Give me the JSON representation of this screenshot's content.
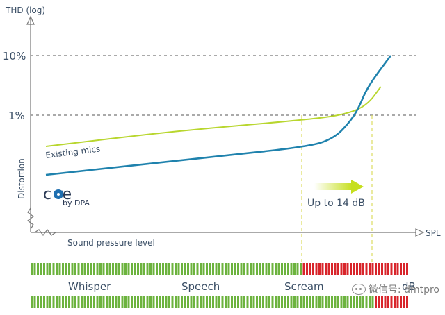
{
  "chart_data": {
    "type": "line",
    "ylabel": "THD (log)",
    "ylabel_side": "Distortion",
    "xlabel": "SPL",
    "xlabel_sub": "Sound pressure level",
    "y_scale": "log",
    "y_ticks": [
      {
        "label": "10%",
        "value": 10
      },
      {
        "label": "1%",
        "value": 1
      }
    ],
    "grid": "dashed lines at 1% and 10%",
    "series": [
      {
        "name": "Existing mics",
        "color": "#b8d62e",
        "points": [
          [
            0.0,
            0.3
          ],
          [
            0.4,
            0.55
          ],
          [
            0.8,
            0.85
          ],
          [
            0.91,
            1.05
          ],
          [
            0.97,
            1.5
          ],
          [
            1.01,
            3.0
          ]
        ]
      },
      {
        "name": "core by DPA",
        "color": "#1f82ad",
        "points": [
          [
            0.0,
            0.1
          ],
          [
            0.5,
            0.2
          ],
          [
            0.8,
            0.3
          ],
          [
            0.87,
            0.42
          ],
          [
            0.91,
            0.7
          ],
          [
            0.94,
            1.2
          ],
          [
            0.97,
            3.0
          ],
          [
            1.04,
            10.0
          ]
        ]
      }
    ],
    "annotation": {
      "text": "Up to 14 dB",
      "color": "#c6df1e"
    },
    "logo": {
      "text_core": "c  re",
      "text_by": "by DPA"
    },
    "level_scale": {
      "labels": [
        "Whisper",
        "Speech",
        "Scream",
        "dB"
      ],
      "colors": {
        "green": "#6cb33e",
        "red": "#d8252b"
      }
    }
  },
  "watermark": {
    "text": "微信号: dmtpro"
  }
}
